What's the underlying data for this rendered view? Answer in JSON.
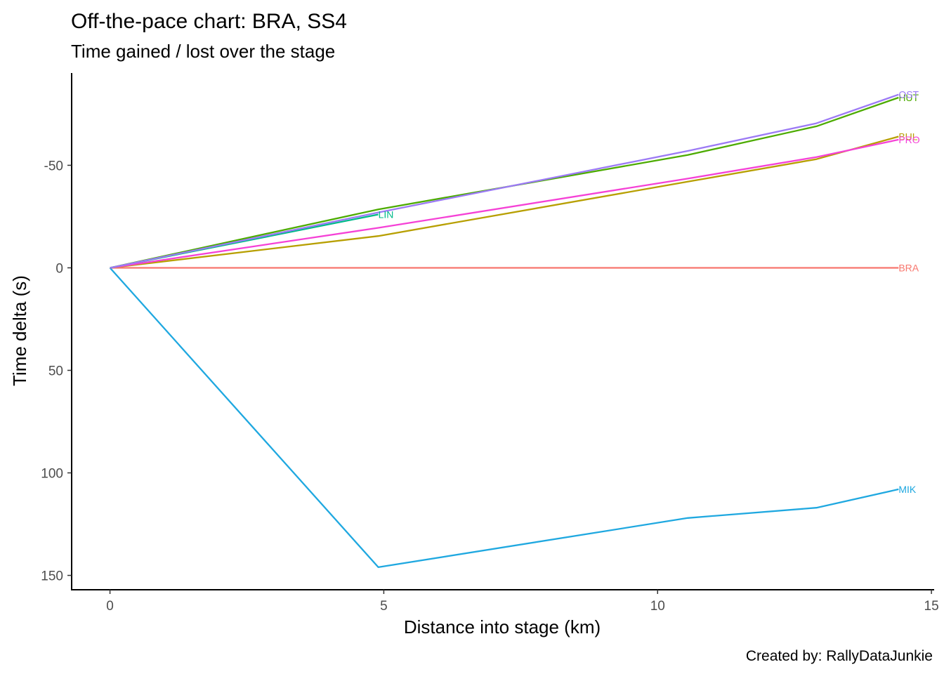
{
  "chart_data": {
    "type": "line",
    "title": "Off-the-pace chart: BRA, SS4",
    "subtitle": "Time gained / lost over the stage",
    "xlabel": "Distance into stage (km)",
    "ylabel": "Time delta (s)",
    "caption": "Created by: RallyDataJunkie",
    "xlim": [
      -0.7,
      15.05
    ],
    "ylim": [
      -95,
      157
    ],
    "y_reversed": true,
    "grid": false,
    "legend": "none",
    "x_ticks": [
      0,
      5,
      10,
      15
    ],
    "y_ticks": [
      -50,
      0,
      50,
      100,
      150
    ],
    "x_tick_labels": [
      "0",
      "5",
      "10",
      "15"
    ],
    "y_tick_labels": [
      "-50",
      "0",
      "50",
      "100",
      "150"
    ],
    "series": [
      {
        "name": "BRA",
        "color": "#F8766D",
        "end_label": "BRA",
        "points": [
          [
            0,
            0
          ],
          [
            4.9,
            0
          ],
          [
            10.55,
            0
          ],
          [
            12.9,
            0
          ],
          [
            14.4,
            0
          ]
        ]
      },
      {
        "name": "MIK",
        "color": "#1FA8E0",
        "end_label": "MIK",
        "points": [
          [
            0,
            0
          ],
          [
            4.9,
            146
          ],
          [
            10.55,
            122
          ],
          [
            12.9,
            117
          ],
          [
            14.4,
            108
          ]
        ]
      },
      {
        "name": "LIN",
        "color": "#00BA8A",
        "end_label": "LIN",
        "points": [
          [
            0,
            0
          ],
          [
            4.9,
            -26
          ]
        ]
      },
      {
        "name": "BUL",
        "color": "#B79F00",
        "end_label": "BUL",
        "points": [
          [
            0,
            0
          ],
          [
            4.9,
            -15.5
          ],
          [
            10.55,
            -42
          ],
          [
            12.9,
            -53
          ],
          [
            14.4,
            -64
          ]
        ]
      },
      {
        "name": "PRO",
        "color": "#F541D6",
        "end_label": "PRO",
        "points": [
          [
            0,
            0
          ],
          [
            4.9,
            -19.5
          ],
          [
            10.55,
            -43.5
          ],
          [
            12.9,
            -54
          ],
          [
            14.4,
            -62.5
          ]
        ]
      },
      {
        "name": "HUT",
        "color": "#4CAB00",
        "end_label": "HUT",
        "points": [
          [
            0,
            0
          ],
          [
            4.9,
            -28.5
          ],
          [
            10.55,
            -55
          ],
          [
            12.9,
            -69
          ],
          [
            14.4,
            -83
          ]
        ]
      },
      {
        "name": "OST",
        "color": "#9C7AF5",
        "end_label": "OST",
        "points": [
          [
            0,
            0
          ],
          [
            4.9,
            -27
          ],
          [
            10.55,
            -57
          ],
          [
            12.9,
            -70.5
          ],
          [
            14.4,
            -84.5
          ]
        ]
      }
    ]
  }
}
